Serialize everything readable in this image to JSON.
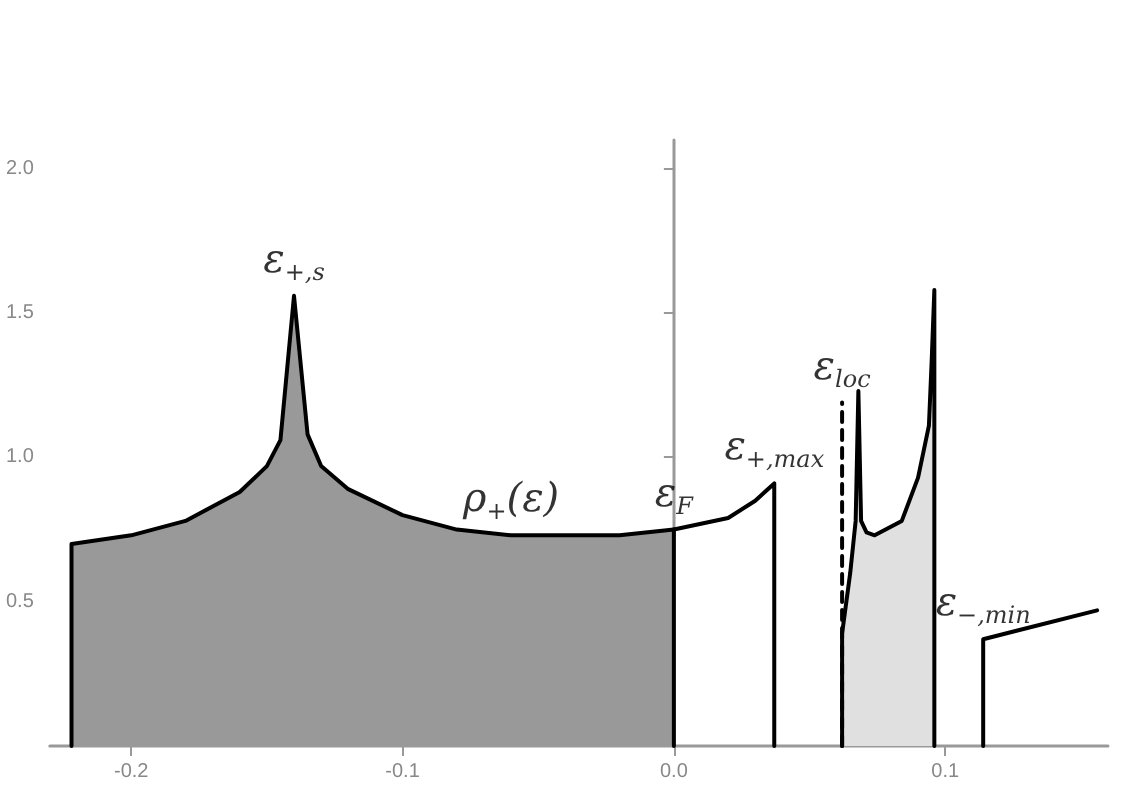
{
  "chart_data": {
    "type": "line",
    "xlim": [
      -0.23,
      0.16
    ],
    "xticks": [
      {
        "value": -0.2,
        "label": "-0.2"
      },
      {
        "value": -0.1,
        "label": "-0.1"
      },
      {
        "value": 0,
        "label": "0.0"
      },
      {
        "value": 0.1,
        "label": "0.1"
      }
    ],
    "ylim": [
      0,
      2.1
    ],
    "yticks": [
      {
        "value": 0.5,
        "label": "0.5"
      },
      {
        "value": 1,
        "label": "1.0"
      },
      {
        "value": 1.5,
        "label": "1.5"
      },
      {
        "value": 2,
        "label": "2.0"
      }
    ],
    "marker": "none",
    "series": [
      {
        "type": "area",
        "color": "#999999",
        "x": [
          -0.222,
          -0.222,
          -0.2,
          -0.18,
          -0.16,
          -0.15,
          -0.145,
          -0.14,
          -0.135,
          -0.13,
          -0.12,
          -0.1,
          -0.08,
          -0.06,
          -0.04,
          -0.02,
          0,
          0
        ],
        "values": [
          0,
          0.7,
          0.73,
          0.78,
          0.88,
          0.97,
          1.06,
          1.56,
          1.08,
          0.97,
          0.89,
          0.8,
          0.75,
          0.73,
          0.73,
          0.73,
          0.75,
          0
        ]
      },
      {
        "color": "#000000",
        "x": [
          0,
          0.01,
          0.02,
          0.03,
          0.037,
          0.037
        ],
        "values": [
          0.75,
          0.77,
          0.79,
          0.85,
          0.91,
          0
        ]
      },
      {
        "type": "area",
        "color": "#e0e0e0",
        "x": [
          0.062,
          0.062,
          0.065,
          0.067,
          0.068,
          0.069,
          0.071,
          0.074,
          0.084,
          0.09,
          0.094,
          0.095,
          0.096,
          0.096
        ],
        "values": [
          0,
          0.39,
          0.6,
          0.78,
          1.23,
          0.78,
          0.74,
          0.73,
          0.78,
          0.93,
          1.11,
          1.33,
          1.58,
          0
        ]
      },
      {
        "color": "#000000",
        "line_style": "dashed",
        "x": [
          0.062,
          0.062
        ],
        "values": [
          0,
          1.19
        ]
      },
      {
        "color": "#000000",
        "x": [
          0.114,
          0.114,
          0.156
        ],
        "values": [
          0,
          0.37,
          0.47
        ]
      }
    ],
    "annotations": [
      {
        "text": "ε$_{+,s}$",
        "x": -0.14,
        "y": 1.56
      },
      {
        "text": "ρ$_{+}$(ε)",
        "x": -0.06,
        "y": 0.73
      },
      {
        "text": "ε$_{F}$",
        "x": 0,
        "y": 0.75
      },
      {
        "text": "ε$_{+,max}$",
        "x": 0.037,
        "y": 0.91
      },
      {
        "text": "ε$_{loc}$",
        "x": 0.062,
        "y": 1.19
      },
      {
        "text": "ε$_{−,min}$",
        "x": 0.114,
        "y": 0.37
      }
    ]
  }
}
